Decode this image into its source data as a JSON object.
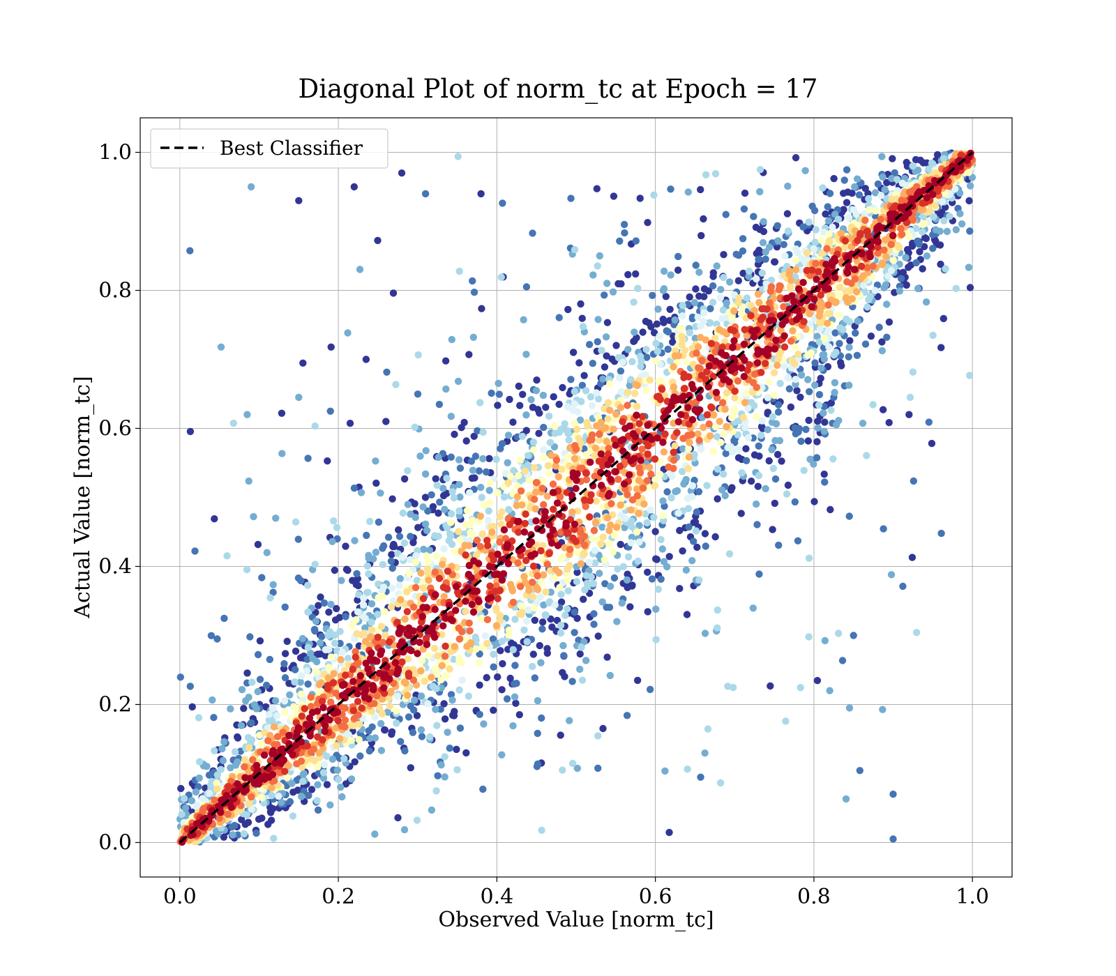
{
  "chart_data": {
    "type": "scatter",
    "title": "Diagonal Plot of norm_tc at Epoch = 17",
    "xlabel": "Observed Value [norm_tc]",
    "ylabel": "Actual Value [norm_tc]",
    "xlim": [
      -0.05,
      1.05
    ],
    "ylim": [
      -0.05,
      1.05
    ],
    "xticks": [
      0.0,
      0.2,
      0.4,
      0.6,
      0.8,
      1.0
    ],
    "yticks": [
      0.0,
      0.2,
      0.4,
      0.6,
      0.8,
      1.0
    ],
    "xtick_labels": [
      "0.0",
      "0.2",
      "0.4",
      "0.6",
      "0.8",
      "1.0"
    ],
    "ytick_labels": [
      "0.0",
      "0.2",
      "0.4",
      "0.6",
      "0.8",
      "1.0"
    ],
    "grid": true,
    "legend_position": "top-left",
    "reference_line": {
      "label": "Best Classifier",
      "x": [
        0.0,
        1.0
      ],
      "y": [
        0.0,
        1.0
      ],
      "style": "dashed",
      "color": "#000000"
    },
    "colormap": "RdYlBu (reversed): red = dense, blue = sparse",
    "palette": [
      "#313695",
      "#4575b4",
      "#74add1",
      "#abd9e9",
      "#e0f3f8",
      "#ffffbf",
      "#fee090",
      "#fdae61",
      "#f46d43",
      "#d73027",
      "#a50026"
    ],
    "sample_points": [
      {
        "x": 0.09,
        "y": 0.95
      },
      {
        "x": 0.15,
        "y": 0.93
      },
      {
        "x": 0.22,
        "y": 0.95
      },
      {
        "x": 0.28,
        "y": 0.97
      },
      {
        "x": 0.31,
        "y": 0.94
      },
      {
        "x": 0.38,
        "y": 0.94
      },
      {
        "x": 0.085,
        "y": 0.62
      },
      {
        "x": 0.15,
        "y": 0.645
      },
      {
        "x": 0.19,
        "y": 0.625
      },
      {
        "x": 0.235,
        "y": 0.7
      },
      {
        "x": 0.26,
        "y": 0.61
      },
      {
        "x": 0.11,
        "y": 0.42
      },
      {
        "x": 0.9,
        "y": 0.07
      },
      {
        "x": 0.9,
        "y": 0.005
      },
      {
        "x": 0.85,
        "y": 0.3
      },
      {
        "x": 0.845,
        "y": 0.195
      },
      {
        "x": 0.92,
        "y": 0.62
      },
      {
        "x": 0.82,
        "y": 0.22
      }
    ]
  }
}
